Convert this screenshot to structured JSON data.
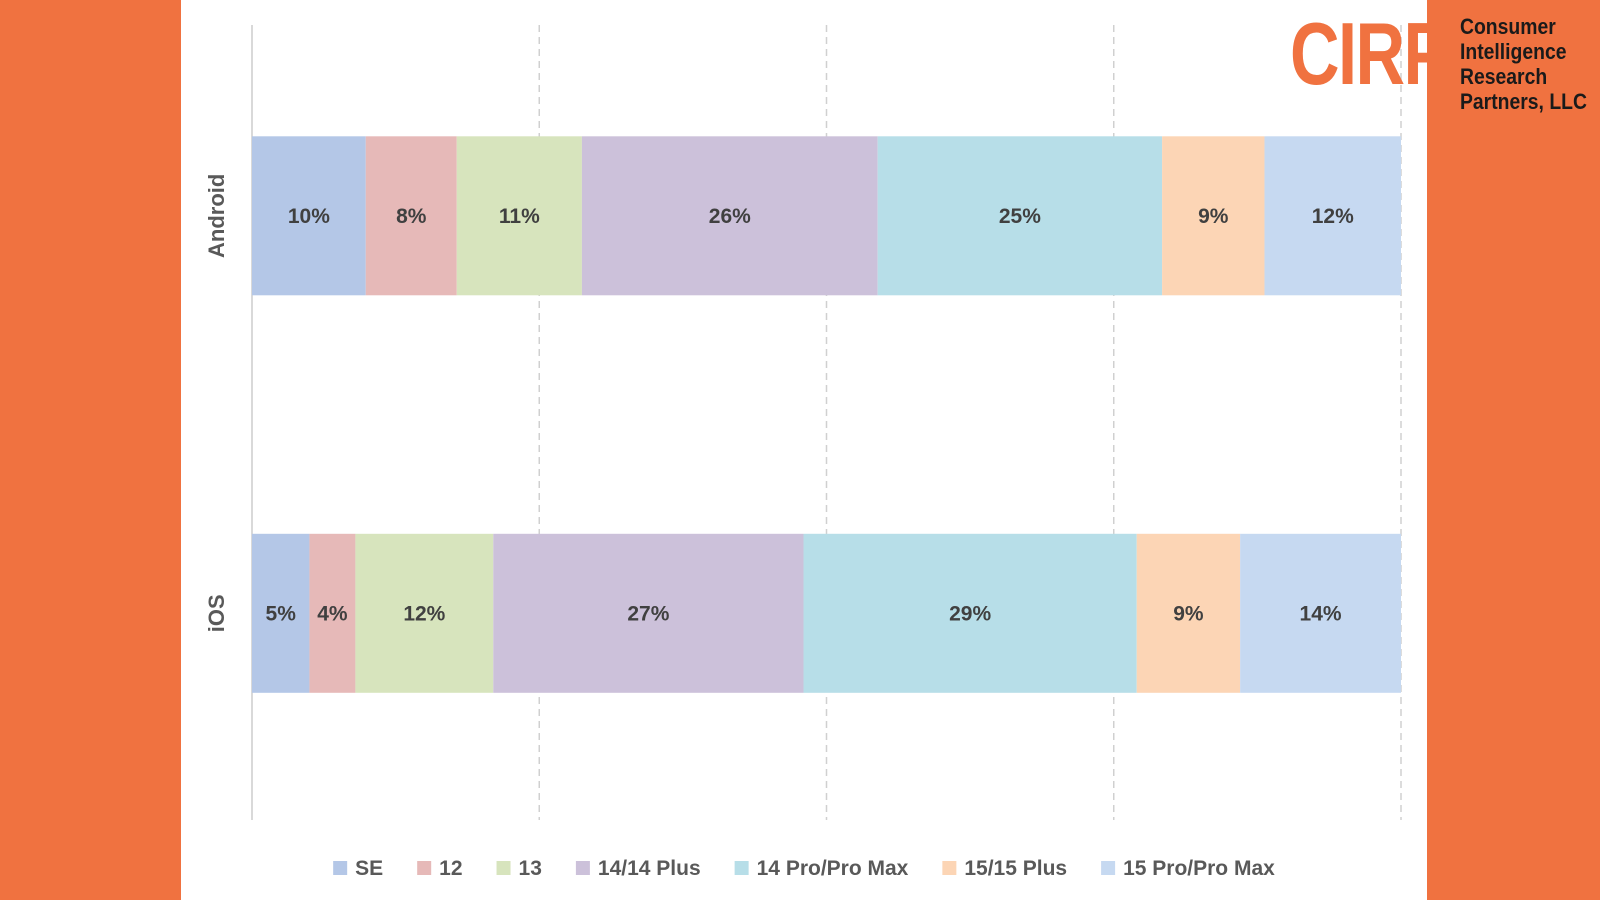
{
  "colors": {
    "background": "#F07240",
    "panel": "#FFFFFF",
    "brand": "#F07240"
  },
  "logo": {
    "mark": "CIRP",
    "lines": [
      "Consumer",
      "Intelligence",
      "Research",
      "Partners, LLC"
    ]
  },
  "chart_data": {
    "type": "bar",
    "orientation": "horizontal",
    "stacked": "100%",
    "title": "",
    "xlabel": "",
    "ylabel": "",
    "xlim": [
      0,
      100
    ],
    "grid": "vertical dashed",
    "legend_position": "bottom",
    "categories": [
      "Android",
      "iOS"
    ],
    "series": [
      {
        "name": "SE",
        "values": [
          10,
          5
        ],
        "labels": [
          "10%",
          "5%"
        ],
        "color": "#B4C7E7"
      },
      {
        "name": "12",
        "values": [
          8,
          4
        ],
        "labels": [
          "8%",
          "4%"
        ],
        "color": "#E6B9B8"
      },
      {
        "name": "13",
        "values": [
          11,
          12
        ],
        "labels": [
          "11%",
          "12%"
        ],
        "color": "#D7E4BD"
      },
      {
        "name": "14/14 Plus",
        "values": [
          26,
          27
        ],
        "labels": [
          "26%",
          "27%"
        ],
        "color": "#CCC1DA"
      },
      {
        "name": "14 Pro/Pro Max",
        "values": [
          25,
          29
        ],
        "labels": [
          "25%",
          "29%"
        ],
        "color": "#B7DEE8"
      },
      {
        "name": "15/15 Plus",
        "values": [
          9,
          9
        ],
        "labels": [
          "9%",
          "9%"
        ],
        "color": "#FCD5B5"
      },
      {
        "name": "15 Pro/Pro Max",
        "values": [
          12,
          14
        ],
        "labels": [
          "12%",
          "14%"
        ],
        "color": "#C6D9F1"
      }
    ]
  }
}
